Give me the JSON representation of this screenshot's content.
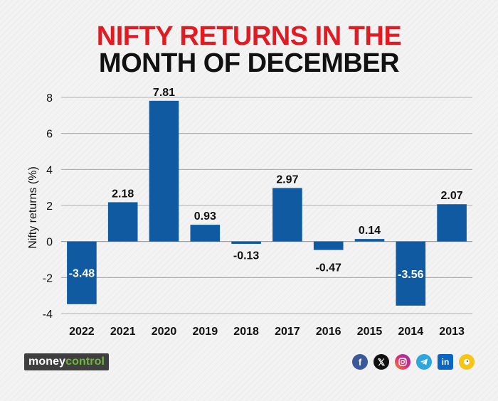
{
  "title_line1": "NIFTY RETURNS IN THE",
  "title_line2": "MONTH OF DECEMBER",
  "brand": {
    "part1": "money",
    "part2": "control"
  },
  "social_icons": [
    "facebook-icon",
    "x-icon",
    "instagram-icon",
    "telegram-icon",
    "linkedin-icon",
    "koo-icon"
  ],
  "colors": {
    "bar": "#0f5aa0",
    "title_accent": "#e01b22",
    "title_dark": "#111111"
  },
  "chart_data": {
    "type": "bar",
    "title": "NIFTY RETURNS IN THE MONTH OF DECEMBER",
    "xlabel": "",
    "ylabel": "Nifty returns (%)",
    "categories": [
      "2022",
      "2021",
      "2020",
      "2019",
      "2018",
      "2017",
      "2016",
      "2015",
      "2014",
      "2013"
    ],
    "values": [
      -3.48,
      2.18,
      7.81,
      0.93,
      -0.13,
      2.97,
      -0.47,
      0.14,
      -3.56,
      2.07
    ],
    "labels": [
      "-3.48",
      "2.18",
      "7.81",
      "0.93",
      "-0.13",
      "2.97",
      "-0.47",
      "0.14",
      "-3.56",
      "2.07"
    ],
    "yticks": [
      -4,
      -2,
      0,
      2,
      4,
      6,
      8
    ],
    "ylim": [
      -4,
      8
    ],
    "grid": true
  }
}
